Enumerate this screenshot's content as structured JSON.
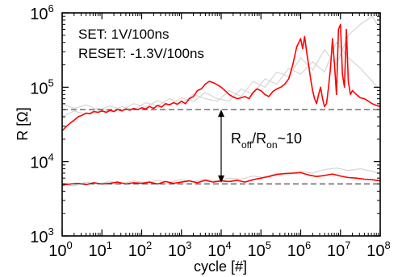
{
  "chart_data": {
    "type": "line",
    "xlabel": "cycle [#]",
    "ylabel": "R [Ω]",
    "x_scale": "log",
    "y_scale": "log",
    "xlim": [
      1,
      100000000
    ],
    "ylim": [
      1000,
      1000000
    ],
    "x_ticks": [
      {
        "base": "10",
        "exp": "0",
        "value": 1
      },
      {
        "base": "10",
        "exp": "1",
        "value": 10
      },
      {
        "base": "10",
        "exp": "2",
        "value": 100
      },
      {
        "base": "10",
        "exp": "3",
        "value": 1000
      },
      {
        "base": "10",
        "exp": "4",
        "value": 10000
      },
      {
        "base": "10",
        "exp": "5",
        "value": 100000
      },
      {
        "base": "10",
        "exp": "6",
        "value": 1000000
      },
      {
        "base": "10",
        "exp": "7",
        "value": 10000000
      },
      {
        "base": "10",
        "exp": "8",
        "value": 100000000
      }
    ],
    "y_ticks": [
      {
        "base": "10",
        "exp": "3",
        "value": 1000
      },
      {
        "base": "10",
        "exp": "4",
        "value": 10000
      },
      {
        "base": "10",
        "exp": "5",
        "value": 100000
      },
      {
        "base": "10",
        "exp": "6",
        "value": 1000000
      }
    ],
    "annotations": {
      "set_text": "SET: 1V/100ns",
      "reset_text": "RESET: -1.3V/100ns",
      "ratio": {
        "r1": "R",
        "s1": "off",
        "slash": "/",
        "r2": "R",
        "s2": "on",
        "tail": "~10"
      },
      "ratio_arrow": {
        "x": 10000,
        "y_from": 5200,
        "y_to": 50000
      }
    },
    "reference_lines": [
      {
        "y": 50000,
        "style": "dashed",
        "color": "#555555"
      },
      {
        "y": 5000,
        "style": "dashed",
        "color": "#555555"
      }
    ],
    "grid": false,
    "series": [
      {
        "color": "#ff0000",
        "role": "high-resistance",
        "points": [
          [
            1,
            26000
          ],
          [
            1.3,
            30000
          ],
          [
            1.6,
            33000
          ],
          [
            2,
            36000
          ],
          [
            2.5,
            40000
          ],
          [
            3.2,
            42000
          ],
          [
            4,
            45000
          ],
          [
            5,
            44000
          ],
          [
            6.3,
            47000
          ],
          [
            8,
            46000
          ],
          [
            10,
            48000
          ],
          [
            13,
            46000
          ],
          [
            16,
            49000
          ],
          [
            20,
            47000
          ],
          [
            25,
            50000
          ],
          [
            32,
            48000
          ],
          [
            40,
            51000
          ],
          [
            50,
            49000
          ],
          [
            63,
            52000
          ],
          [
            80,
            50000
          ],
          [
            100,
            53000
          ],
          [
            126,
            51000
          ],
          [
            158,
            55000
          ],
          [
            200,
            52000
          ],
          [
            251,
            57000
          ],
          [
            316,
            54000
          ],
          [
            398,
            60000
          ],
          [
            501,
            58000
          ],
          [
            631,
            62000
          ],
          [
            794,
            59000
          ],
          [
            1000,
            65000
          ],
          [
            1260,
            60000
          ],
          [
            1580,
            70000
          ],
          [
            2000,
            75000
          ],
          [
            2510,
            90000
          ],
          [
            3160,
            95000
          ],
          [
            3980,
            110000
          ],
          [
            5010,
            120000
          ],
          [
            6310,
            115000
          ],
          [
            7940,
            108000
          ],
          [
            10000,
            100000
          ],
          [
            12600,
            90000
          ],
          [
            15800,
            80000
          ],
          [
            20000,
            74000
          ],
          [
            25100,
            70000
          ],
          [
            31600,
            72000
          ],
          [
            39800,
            75000
          ],
          [
            50100,
            70000
          ],
          [
            63100,
            85000
          ],
          [
            79400,
            95000
          ],
          [
            100000,
            90000
          ],
          [
            126000,
            80000
          ],
          [
            158000,
            75000
          ],
          [
            200000,
            88000
          ],
          [
            251000,
            95000
          ],
          [
            316000,
            100000
          ],
          [
            398000,
            110000
          ],
          [
            501000,
            130000
          ],
          [
            631000,
            200000
          ],
          [
            794000,
            350000
          ],
          [
            1000000,
            450000
          ],
          [
            1120000,
            330000
          ],
          [
            1260000,
            480000
          ],
          [
            1410000,
            300000
          ],
          [
            1580000,
            200000
          ],
          [
            1780000,
            130000
          ],
          [
            2000000,
            90000
          ],
          [
            2240000,
            70000
          ],
          [
            2510000,
            60000
          ],
          [
            2820000,
            80000
          ],
          [
            3160000,
            100000
          ],
          [
            3550000,
            70000
          ],
          [
            3980000,
            55000
          ],
          [
            4470000,
            60000
          ],
          [
            5010000,
            100000
          ],
          [
            5620000,
            180000
          ],
          [
            6310000,
            450000
          ],
          [
            7080000,
            200000
          ],
          [
            7940000,
            80000
          ],
          [
            8910000,
            600000
          ],
          [
            10000000,
            700000
          ],
          [
            11200000,
            150000
          ],
          [
            12600000,
            100000
          ],
          [
            14100000,
            600000
          ],
          [
            15800000,
            120000
          ],
          [
            17800000,
            80000
          ],
          [
            20000000,
            90000
          ],
          [
            25100000,
            80000
          ],
          [
            31600000,
            72000
          ],
          [
            39800000,
            70000
          ],
          [
            50100000,
            65000
          ],
          [
            63100000,
            60000
          ],
          [
            79400000,
            57000
          ],
          [
            100000000,
            55000
          ]
        ]
      },
      {
        "color": "#ff0000",
        "role": "low-resistance",
        "points": [
          [
            1,
            4800
          ],
          [
            1.6,
            5000
          ],
          [
            2.5,
            5100
          ],
          [
            4,
            4900
          ],
          [
            6.3,
            5200
          ],
          [
            10,
            5000
          ],
          [
            16,
            5100
          ],
          [
            25,
            5300
          ],
          [
            40,
            5000
          ],
          [
            63,
            5200
          ],
          [
            100,
            5100
          ],
          [
            158,
            5300
          ],
          [
            251,
            5000
          ],
          [
            398,
            5400
          ],
          [
            631,
            5100
          ],
          [
            1000,
            5300
          ],
          [
            1580,
            5500
          ],
          [
            2510,
            5200
          ],
          [
            3980,
            5600
          ],
          [
            6310,
            5300
          ],
          [
            10000,
            5500
          ],
          [
            15800,
            5400
          ],
          [
            25100,
            5600
          ],
          [
            39800,
            5300
          ],
          [
            63100,
            5700
          ],
          [
            100000,
            6000
          ],
          [
            158000,
            6300
          ],
          [
            251000,
            6700
          ],
          [
            398000,
            6900
          ],
          [
            631000,
            7000
          ],
          [
            1000000,
            7100
          ],
          [
            1580000,
            6600
          ],
          [
            2510000,
            6300
          ],
          [
            3980000,
            6500
          ],
          [
            6310000,
            6800
          ],
          [
            10000000,
            6400
          ],
          [
            15800000,
            6100
          ],
          [
            25100000,
            6000
          ],
          [
            39800000,
            5800
          ],
          [
            63100000,
            5700
          ],
          [
            100000000,
            5500
          ]
        ]
      },
      {
        "color": "#d8d8d8",
        "role": "background-trace",
        "points": [
          [
            1,
            40000
          ],
          [
            2,
            48000
          ],
          [
            4,
            43000
          ],
          [
            8,
            52000
          ],
          [
            16,
            47000
          ],
          [
            32,
            55000
          ],
          [
            63,
            50000
          ],
          [
            126,
            62000
          ],
          [
            251,
            56000
          ],
          [
            501,
            70000
          ],
          [
            1000,
            60000
          ],
          [
            2000,
            80000
          ],
          [
            3980,
            70000
          ],
          [
            7940,
            65000
          ],
          [
            15800,
            90000
          ],
          [
            31600,
            75000
          ],
          [
            63100,
            120000
          ],
          [
            126000,
            100000
          ],
          [
            251000,
            160000
          ],
          [
            501000,
            140000
          ],
          [
            1000000,
            250000
          ],
          [
            2000000,
            170000
          ],
          [
            3980000,
            320000
          ],
          [
            7940000,
            200000
          ],
          [
            15800000,
            500000
          ],
          [
            31600000,
            700000
          ],
          [
            63100000,
            900000
          ],
          [
            100000000,
            600000
          ]
        ]
      },
      {
        "color": "#d8d8d8",
        "role": "background-trace",
        "points": [
          [
            1,
            60000
          ],
          [
            2,
            52000
          ],
          [
            4,
            58000
          ],
          [
            8,
            49000
          ],
          [
            16,
            56000
          ],
          [
            32,
            50000
          ],
          [
            63,
            60000
          ],
          [
            126,
            54000
          ],
          [
            251,
            66000
          ],
          [
            501,
            58000
          ],
          [
            1000,
            72000
          ],
          [
            2000,
            64000
          ],
          [
            3980,
            85000
          ],
          [
            7940,
            70000
          ],
          [
            15800,
            65000
          ],
          [
            31600,
            95000
          ],
          [
            63100,
            80000
          ],
          [
            126000,
            130000
          ],
          [
            251000,
            110000
          ],
          [
            501000,
            180000
          ],
          [
            1000000,
            150000
          ],
          [
            2000000,
            220000
          ],
          [
            3980000,
            160000
          ],
          [
            7940000,
            400000
          ],
          [
            15800000,
            250000
          ],
          [
            31600000,
            180000
          ],
          [
            63100000,
            120000
          ],
          [
            100000000,
            90000
          ]
        ]
      },
      {
        "color": "#d8d8d8",
        "role": "background-trace",
        "points": [
          [
            1,
            5000
          ],
          [
            2,
            4700
          ],
          [
            4,
            5300
          ],
          [
            8,
            5000
          ],
          [
            16,
            5400
          ],
          [
            32,
            5100
          ],
          [
            63,
            5500
          ],
          [
            126,
            5200
          ],
          [
            251,
            5600
          ],
          [
            501,
            5300
          ],
          [
            1000,
            5700
          ],
          [
            2000,
            5400
          ],
          [
            3980,
            5800
          ],
          [
            7940,
            5500
          ],
          [
            15800,
            6000
          ],
          [
            31600,
            5800
          ],
          [
            63100,
            6400
          ],
          [
            126000,
            6100
          ],
          [
            251000,
            7000
          ],
          [
            501000,
            6600
          ],
          [
            1000000,
            7400
          ],
          [
            2000000,
            7000
          ],
          [
            3980000,
            7800
          ],
          [
            7940000,
            8200
          ],
          [
            15800000,
            7600
          ],
          [
            31600000,
            8000
          ],
          [
            63100000,
            7400
          ],
          [
            100000000,
            6800
          ]
        ]
      }
    ]
  }
}
